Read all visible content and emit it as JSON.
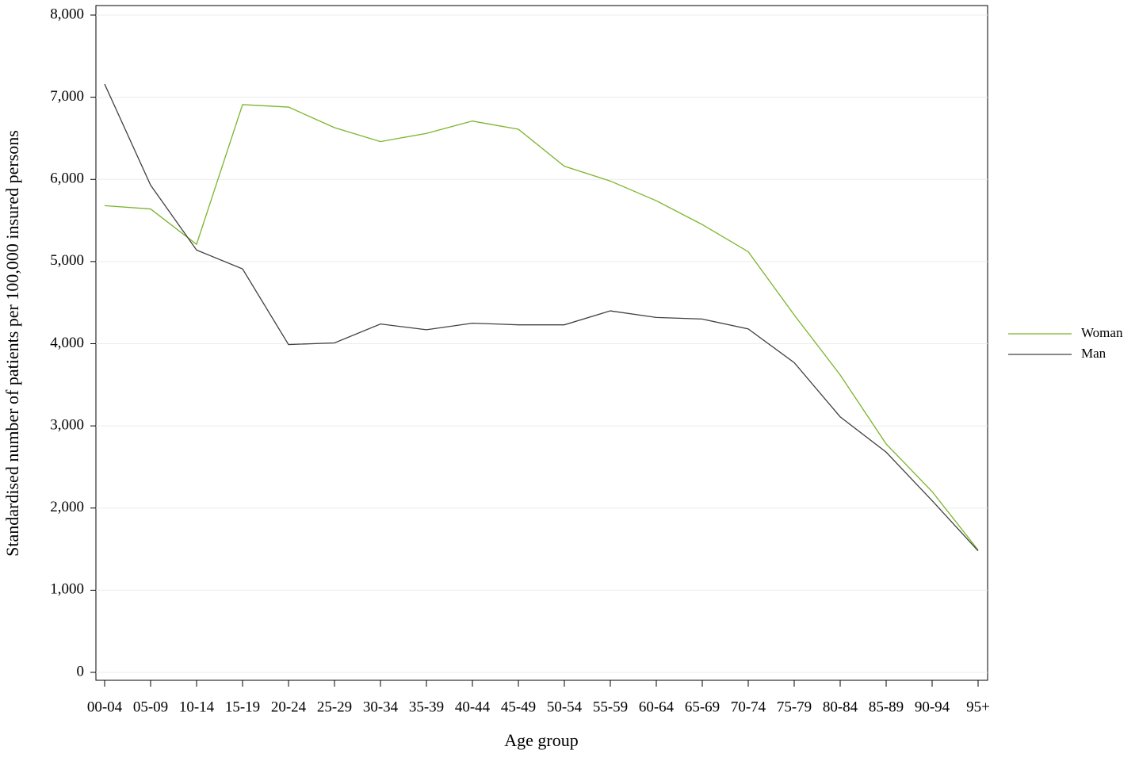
{
  "chart_data": {
    "type": "line",
    "x_label": "Age group",
    "y_label": "Standardised number of patients per 100,000 insured persons",
    "categories": [
      "00-04",
      "05-09",
      "10-14",
      "15-19",
      "20-24",
      "25-29",
      "30-34",
      "35-39",
      "40-44",
      "45-49",
      "50-54",
      "55-59",
      "60-64",
      "65-69",
      "70-74",
      "75-79",
      "80-84",
      "85-89",
      "90-94",
      "95+"
    ],
    "series": [
      {
        "name": "Woman",
        "color": "#7ab52a",
        "values": [
          5680,
          5640,
          5210,
          6910,
          6880,
          6630,
          6460,
          6560,
          6710,
          6610,
          6160,
          5980,
          5740,
          5450,
          5120,
          4350,
          3620,
          2780,
          2200,
          1490
        ]
      },
      {
        "name": "Man",
        "color": "#404040",
        "values": [
          7160,
          5930,
          5140,
          4910,
          3990,
          4010,
          4240,
          4170,
          4250,
          4230,
          4230,
          4400,
          4320,
          4300,
          4180,
          3770,
          3110,
          2680,
          2090,
          1480
        ]
      }
    ],
    "ylim": [
      0,
      8000
    ],
    "yticks": [
      0,
      {
        "value": 1000,
        "label": "1,000"
      },
      {
        "value": 2000,
        "label": "2,000"
      },
      {
        "value": 3000,
        "label": "3,000"
      },
      {
        "value": 4000,
        "label": "4,000"
      },
      {
        "value": 5000,
        "label": "5,000"
      },
      {
        "value": 6000,
        "label": "6,000"
      },
      {
        "value": 7000,
        "label": "7,000"
      },
      {
        "value": 8000,
        "label": "8,000"
      }
    ],
    "grid": true,
    "legend": "right"
  }
}
